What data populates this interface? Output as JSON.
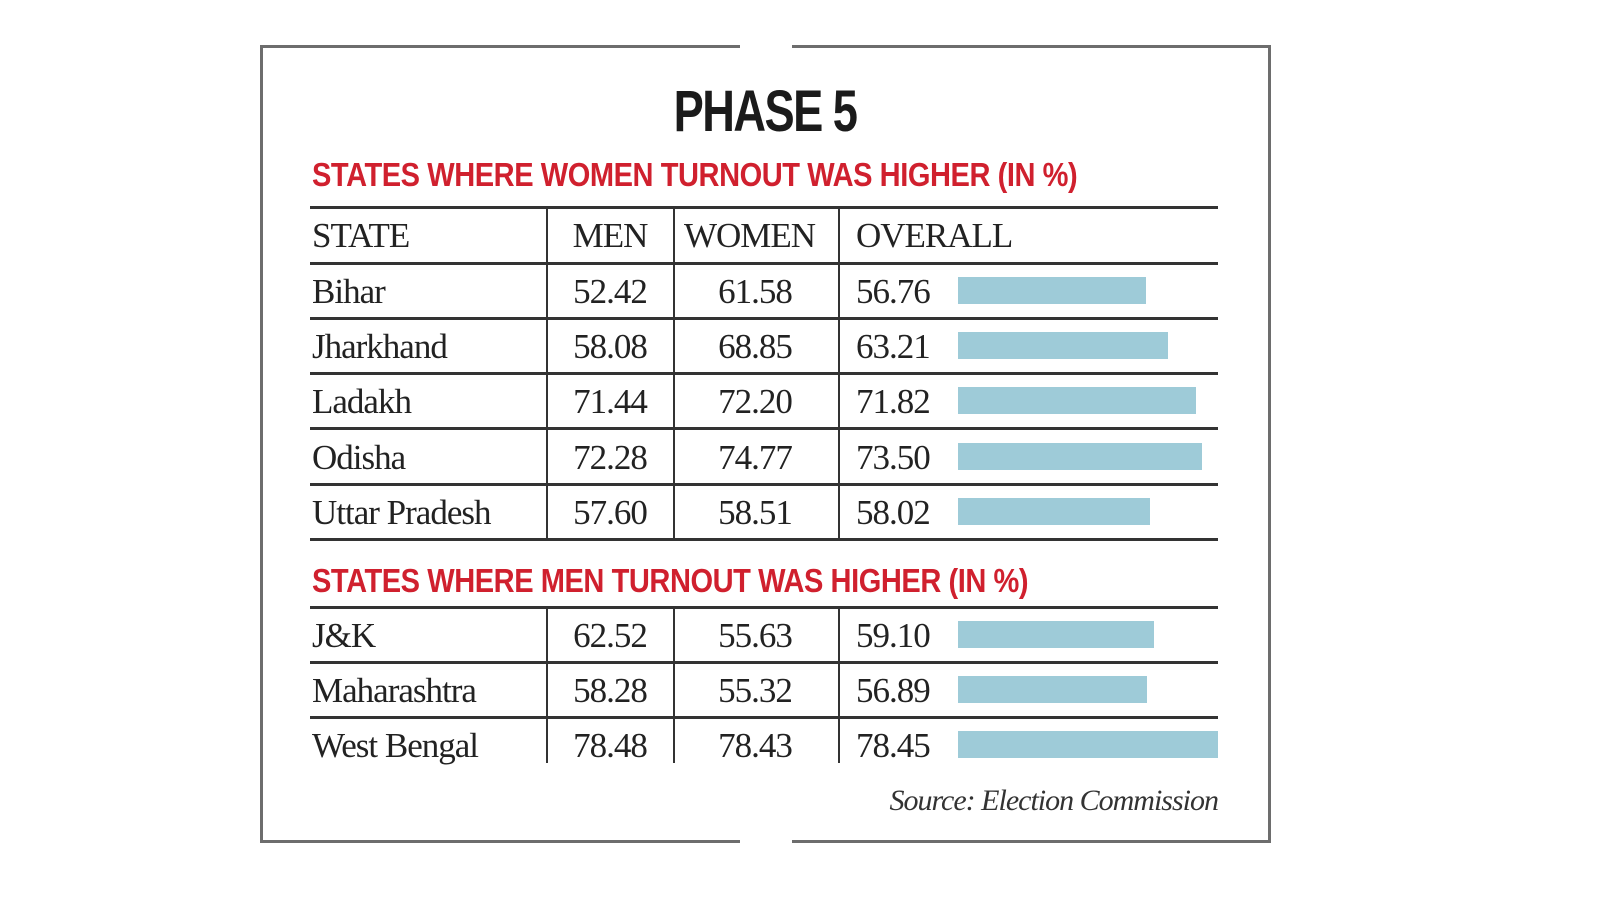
{
  "title": "PHASE 5",
  "chart_data": {
    "type": "table",
    "title": "PHASE 5",
    "columns": [
      "STATE",
      "MEN",
      "WOMEN",
      "OVERALL"
    ],
    "groups": [
      {
        "heading": "STATES WHERE WOMEN TURNOUT WAS HIGHER (IN %)",
        "rows": [
          {
            "state": "Bihar",
            "men": "52.42",
            "women": "61.58",
            "overall": "56.76",
            "overall_value": 56.76
          },
          {
            "state": "Jharkhand",
            "men": "58.08",
            "women": "68.85",
            "overall": "63.21",
            "overall_value": 63.21
          },
          {
            "state": "Ladakh",
            "men": "71.44",
            "women": "72.20",
            "overall": "71.82",
            "overall_value": 71.82
          },
          {
            "state": "Odisha",
            "men": "72.28",
            "women": "74.77",
            "overall": "73.50",
            "overall_value": 73.5
          },
          {
            "state": "Uttar Pradesh",
            "men": "57.60",
            "women": "58.51",
            "overall": "58.02",
            "overall_value": 58.02
          }
        ]
      },
      {
        "heading": "STATES WHERE MEN TURNOUT WAS HIGHER (IN %)",
        "rows": [
          {
            "state": "J&K",
            "men": "62.52",
            "women": "55.63",
            "overall": "59.10",
            "overall_value": 59.1
          },
          {
            "state": "Maharashtra",
            "men": "58.28",
            "women": "55.32",
            "overall": "56.89",
            "overall_value": 56.89
          },
          {
            "state": "West Bengal",
            "men": "78.48",
            "women": "78.43",
            "overall": "78.45",
            "overall_value": 78.45
          }
        ]
      }
    ],
    "bar_color": "#9ecbd8",
    "heading_color": "#d0202e"
  },
  "source": "Source: Election Commission"
}
